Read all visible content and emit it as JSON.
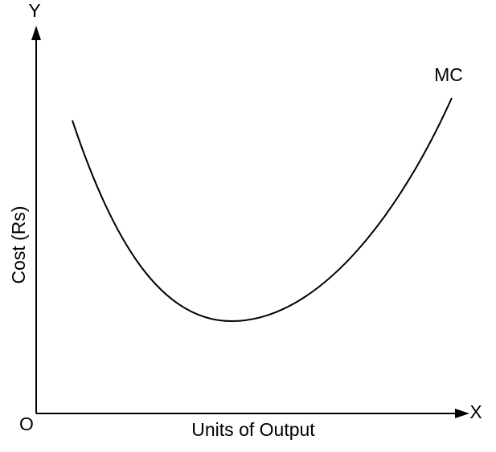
{
  "axes": {
    "y_label": "Y",
    "x_label": "X",
    "origin": "O",
    "y_title": "Cost (Rs)",
    "x_title": "Units of Output"
  },
  "curve": {
    "label": "MC"
  }
}
